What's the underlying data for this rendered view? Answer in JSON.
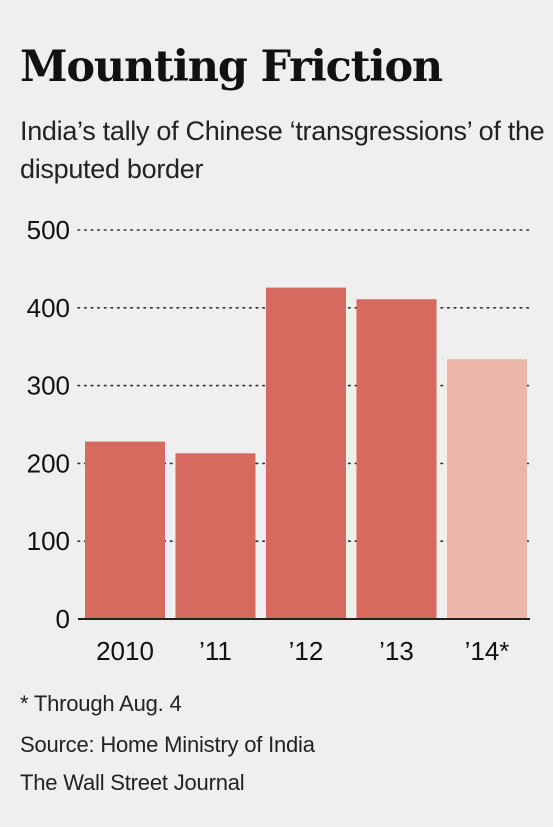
{
  "title": "Mounting Friction",
  "subtitle": "India’s tally of Chinese ‘transgressions’ of the disputed border",
  "chart_data": {
    "type": "bar",
    "title": "Mounting Friction",
    "subtitle": "India’s tally of Chinese ‘transgressions’ of the disputed border",
    "categories": [
      "2010",
      "’11",
      "’12",
      "’13",
      "’14*"
    ],
    "values": [
      228,
      213,
      426,
      411,
      334
    ],
    "bar_colors": [
      "#d66a5e",
      "#d66a5e",
      "#d66a5e",
      "#d66a5e",
      "#ebb5a7"
    ],
    "xlabel": "",
    "ylabel": "",
    "ylim": [
      0,
      500
    ],
    "yticks": [
      0,
      100,
      200,
      300,
      400,
      500
    ],
    "grid": "dotted horizontal",
    "legend": "none"
  },
  "footnotes": {
    "note": "* Through Aug. 4",
    "source": "Source: Home Ministry of India",
    "credit": "The Wall Street Journal"
  },
  "colors": {
    "background": "#efefef",
    "bar": "#d66a5e",
    "bar_partial": "#ebb5a7",
    "text": "#111111",
    "gridline": "#333333"
  }
}
